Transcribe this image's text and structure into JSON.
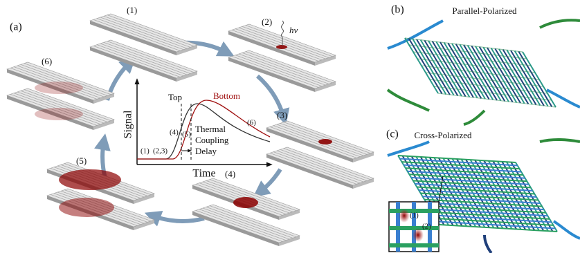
{
  "panel_a": {
    "label": "(a)",
    "steps": [
      "(1)",
      "(2)",
      "(3)",
      "(4)",
      "(5)",
      "(6)"
    ],
    "photon": "hν",
    "plot": {
      "y_label": "Signal",
      "x_label": "Time",
      "top": "Top",
      "bottom": "Bottom",
      "annotation": [
        "Thermal",
        "Coupling",
        "Delay"
      ],
      "phases": [
        "(1)",
        "(2,3)",
        "(4)",
        "(5)",
        "(6)"
      ]
    }
  },
  "panel_b": {
    "label": "(b)",
    "title": "Parallel-Polarized"
  },
  "panel_c": {
    "label": "(c)",
    "title": "Cross-Polarized",
    "inset_labels": [
      "(1)",
      "(2)"
    ]
  }
}
